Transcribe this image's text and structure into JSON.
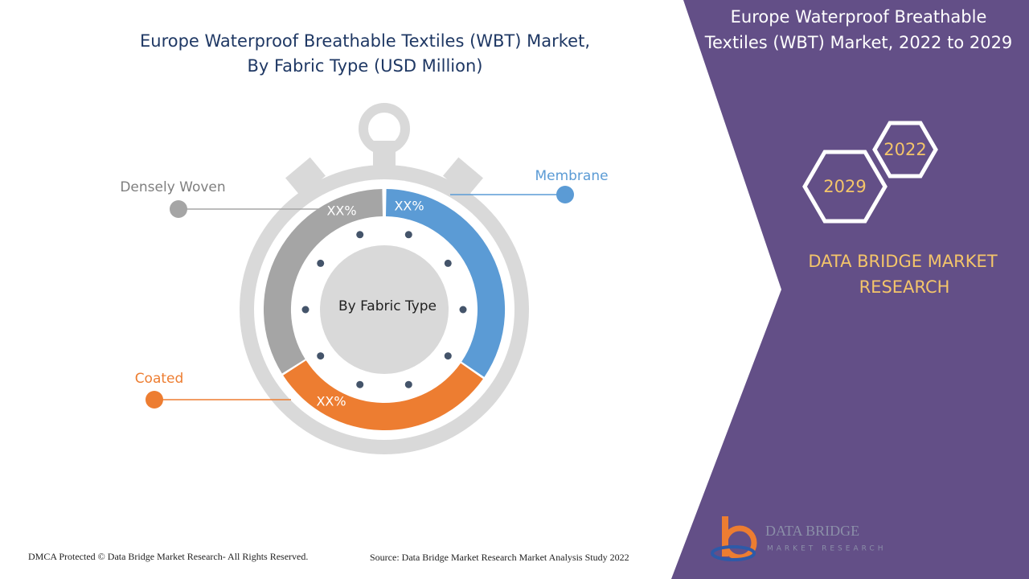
{
  "header": {
    "title_lines": [
      "Europe Waterproof Breathable Textiles (WBT) Market,",
      "By Fabric Type (USD Million)"
    ]
  },
  "ring": {
    "center_label": "By Fabric Type",
    "segments": [
      {
        "label": "Membrane",
        "value_label": "XX%"
      },
      {
        "label": "Coated",
        "value_label": "XX%"
      },
      {
        "label": "Densely Woven",
        "value_label": "XX%"
      }
    ]
  },
  "side_panel": {
    "title_lines": [
      "Europe Waterproof Breathable",
      "Textiles (WBT) Market, 2022 to 2029"
    ],
    "hexagons": [
      "2022",
      "2029"
    ],
    "brand_lines": [
      "DATA BRIDGE MARKET",
      "RESEARCH"
    ]
  },
  "logo": {
    "name": "DATA BRIDGE",
    "tagline": "MARKET RESEARCH"
  },
  "footer": {
    "copyright": "DMCA Protected © Data Bridge Market Research- All Rights Reserved.",
    "source": "Source: Data Bridge Market Research Market Analysis Study 2022"
  }
}
